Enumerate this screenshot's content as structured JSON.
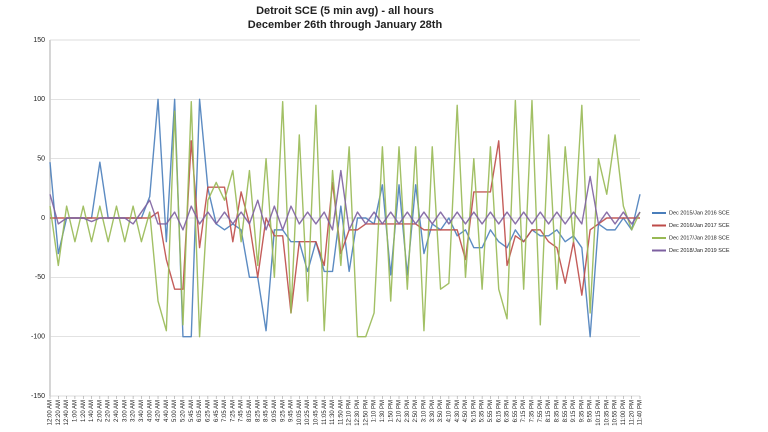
{
  "chart_data": {
    "type": "line",
    "title": "Detroit SCE (5 min avg) - all hours",
    "subtitle": "December 26th through January 28th",
    "categories": [
      "12:00 AM",
      "12:20 AM",
      "12:40 AM",
      "1:00 AM",
      "1:20 AM",
      "1:40 AM",
      "2:00 AM",
      "2:20 AM",
      "2:40 AM",
      "3:00 AM",
      "3:20 AM",
      "3:40 AM",
      "4:00 AM",
      "4:20 AM",
      "4:40 AM",
      "5:00 AM",
      "5:20 AM",
      "5:45 AM",
      "6:05 AM",
      "6:25 AM",
      "6:45 AM",
      "7:05 AM",
      "7:25 AM",
      "7:45 AM",
      "8:05 AM",
      "8:25 AM",
      "8:45 AM",
      "9:05 AM",
      "9:25 AM",
      "9:45 AM",
      "10:05 AM",
      "10:25 AM",
      "10:45 AM",
      "11:05 AM",
      "11:30 AM",
      "11:50 AM",
      "12:10 PM",
      "12:30 PM",
      "12:50 PM",
      "1:10 PM",
      "1:30 PM",
      "1:50 PM",
      "2:10 PM",
      "2:30 PM",
      "2:50 PM",
      "3:10 PM",
      "3:30 PM",
      "3:50 PM",
      "4:10 PM",
      "4:30 PM",
      "4:50 PM",
      "5:15 PM",
      "5:35 PM",
      "5:55 PM",
      "6:15 PM",
      "6:35 PM",
      "6:55 PM",
      "7:15 PM",
      "7:35 PM",
      "7:55 PM",
      "8:15 PM",
      "8:35 PM",
      "8:55 PM",
      "9:15 PM",
      "9:35 PM",
      "9:55 PM",
      "10:15 PM",
      "10:35 PM",
      "10:55 PM",
      "11:00 PM",
      "11:20 PM",
      "11:40 PM"
    ],
    "series": [
      {
        "name": "Dec 2015/Jan 2016 SCE",
        "color": "#4a7ebb",
        "values": [
          47,
          -30,
          0,
          0,
          0,
          0,
          47,
          0,
          0,
          0,
          0,
          0,
          18,
          100,
          -20,
          100,
          -100,
          -100,
          100,
          25,
          -5,
          -10,
          -5,
          -10,
          -50,
          -50,
          -95,
          -10,
          -10,
          -20,
          -20,
          -45,
          -20,
          -45,
          -45,
          10,
          -45,
          0,
          0,
          -5,
          28,
          -48,
          28,
          -48,
          28,
          -30,
          -5,
          -10,
          0,
          -15,
          -10,
          -25,
          -25,
          -10,
          -20,
          -25,
          -10,
          -20,
          -10,
          -15,
          -15,
          -10,
          -20,
          -15,
          -25,
          -100,
          -5,
          -10,
          -10,
          0,
          -10,
          20
        ]
      },
      {
        "name": "Dec 2016/Jan 2017 SCE",
        "color": "#be4b48",
        "values": [
          0,
          0,
          0,
          0,
          0,
          0,
          0,
          0,
          0,
          0,
          0,
          0,
          0,
          5,
          -35,
          -60,
          -60,
          65,
          -25,
          26,
          26,
          26,
          -20,
          22,
          -5,
          -50,
          0,
          -15,
          -15,
          -80,
          -20,
          -20,
          -20,
          -40,
          30,
          -30,
          -10,
          -10,
          -5,
          -5,
          -5,
          -5,
          -5,
          -5,
          -5,
          -10,
          -10,
          -10,
          -10,
          -10,
          -35,
          22,
          22,
          22,
          65,
          -40,
          -15,
          -20,
          -10,
          -10,
          -20,
          -25,
          -55,
          -20,
          -65,
          -10,
          -5,
          0,
          0,
          0,
          0,
          0
        ]
      },
      {
        "name": "Dec 2017/Jan 2018 SCE",
        "color": "#98b954",
        "values": [
          10,
          -40,
          10,
          -20,
          10,
          -20,
          10,
          -20,
          10,
          -20,
          10,
          -20,
          5,
          -70,
          -95,
          90,
          -90,
          98,
          -100,
          15,
          30,
          15,
          40,
          -20,
          40,
          -40,
          50,
          -50,
          98,
          -80,
          70,
          -70,
          95,
          -95,
          40,
          -40,
          60,
          -100,
          -100,
          -80,
          60,
          -70,
          60,
          -60,
          60,
          -95,
          60,
          -60,
          -55,
          95,
          -50,
          50,
          -60,
          60,
          -60,
          -85,
          99,
          -60,
          99,
          -90,
          70,
          -60,
          60,
          -20,
          95,
          -80,
          50,
          20,
          70,
          10,
          -10,
          5
        ]
      },
      {
        "name": "Dec 2018/Jan 2019 SCE",
        "color": "#7d60a0",
        "values": [
          20,
          -5,
          0,
          0,
          0,
          -3,
          0,
          0,
          0,
          0,
          -5,
          5,
          15,
          -5,
          -5,
          5,
          -10,
          10,
          -5,
          5,
          -5,
          5,
          -5,
          5,
          -5,
          15,
          -10,
          10,
          -10,
          10,
          -5,
          5,
          -5,
          5,
          -10,
          40,
          -10,
          5,
          -5,
          5,
          -5,
          5,
          -5,
          5,
          -5,
          5,
          -5,
          5,
          -5,
          5,
          -5,
          5,
          -5,
          5,
          -5,
          5,
          -5,
          5,
          -5,
          5,
          -5,
          5,
          -5,
          5,
          -5,
          35,
          -5,
          5,
          -5,
          5,
          -5,
          5
        ]
      }
    ],
    "ylim": [
      -150,
      150
    ],
    "yticks": [
      -150,
      -100,
      -50,
      0,
      50,
      100,
      150
    ],
    "grid": true,
    "legend": "right"
  }
}
